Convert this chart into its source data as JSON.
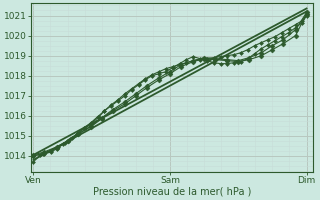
{
  "title": "",
  "xlabel": "Pression niveau de la mer( hPa )",
  "ylabel": "",
  "bg_color": "#cce8e0",
  "grid_color_major": "#b8c8c0",
  "grid_color_minor": "#c8dcd8",
  "line_color": "#2d5a2d",
  "marker_color": "#2d5a2d",
  "ylim": [
    1013.2,
    1021.6
  ],
  "yticks": [
    1014,
    1015,
    1016,
    1017,
    1018,
    1019,
    1020,
    1021
  ],
  "xtick_labels": [
    "Ven",
    "Sam",
    "Dim"
  ],
  "xtick_positions": [
    0.0,
    1.0,
    2.0
  ],
  "series": [
    {
      "x": [
        0.0,
        2.0
      ],
      "y": [
        1013.8,
        1021.2
      ],
      "marker": "none",
      "linewidth": 1.3,
      "markersize": 0
    },
    {
      "x": [
        0.0,
        2.0
      ],
      "y": [
        1014.05,
        1021.35
      ],
      "marker": "none",
      "linewidth": 1.3,
      "markersize": 0
    },
    {
      "x": [
        0.0,
        0.05,
        0.08,
        0.13,
        0.17,
        0.22,
        0.27,
        0.32,
        0.37,
        0.42,
        0.47,
        0.52,
        0.57,
        0.62,
        0.67,
        0.72,
        0.77,
        0.82,
        0.87,
        0.92,
        0.97,
        1.02,
        1.07,
        1.12,
        1.17,
        1.22,
        1.27,
        1.32,
        1.37,
        1.42,
        1.47,
        1.52,
        1.57,
        1.62,
        1.67,
        1.72,
        1.77,
        1.82,
        1.87,
        1.92,
        1.97,
        2.0
      ],
      "y": [
        1013.7,
        1014.05,
        1014.1,
        1014.2,
        1014.35,
        1014.6,
        1014.85,
        1015.1,
        1015.4,
        1015.65,
        1015.95,
        1016.25,
        1016.55,
        1016.8,
        1017.1,
        1017.35,
        1017.6,
        1017.85,
        1018.05,
        1018.2,
        1018.35,
        1018.45,
        1018.55,
        1018.65,
        1018.75,
        1018.8,
        1018.85,
        1018.9,
        1018.95,
        1019.0,
        1019.05,
        1019.15,
        1019.3,
        1019.5,
        1019.65,
        1019.8,
        1019.95,
        1020.15,
        1020.35,
        1020.55,
        1020.75,
        1021.05
      ],
      "marker": "D",
      "linewidth": 0.8,
      "markersize": 2.0
    },
    {
      "x": [
        0.0,
        0.07,
        0.13,
        0.18,
        0.23,
        0.28,
        0.33,
        0.38,
        0.43,
        0.48,
        0.52,
        0.57,
        0.62,
        0.67,
        0.72,
        0.77,
        0.82,
        0.87,
        0.92,
        0.97,
        1.02,
        1.07,
        1.12,
        1.17,
        1.22,
        1.27,
        1.32,
        1.37,
        1.42,
        1.47,
        1.52,
        1.57,
        1.62,
        1.67,
        1.72,
        1.77,
        1.82,
        1.87,
        1.92,
        1.97,
        2.0
      ],
      "y": [
        1014.0,
        1014.1,
        1014.25,
        1014.45,
        1014.65,
        1014.9,
        1015.15,
        1015.4,
        1015.65,
        1015.95,
        1016.25,
        1016.5,
        1016.75,
        1017.0,
        1017.3,
        1017.55,
        1017.8,
        1018.0,
        1018.1,
        1018.2,
        1018.4,
        1018.6,
        1018.8,
        1018.95,
        1018.85,
        1018.75,
        1018.65,
        1018.6,
        1018.6,
        1018.65,
        1018.7,
        1018.85,
        1019.1,
        1019.35,
        1019.55,
        1019.75,
        1019.95,
        1020.15,
        1020.4,
        1020.65,
        1021.0
      ],
      "marker": "D",
      "linewidth": 0.8,
      "markersize": 2.0
    },
    {
      "x": [
        0.0,
        0.08,
        0.17,
        0.25,
        0.33,
        0.42,
        0.5,
        0.58,
        0.67,
        0.75,
        0.83,
        0.92,
        1.0,
        1.08,
        1.17,
        1.25,
        1.33,
        1.42,
        1.5,
        1.58,
        1.67,
        1.75,
        1.83,
        1.92,
        2.0
      ],
      "y": [
        1014.05,
        1014.2,
        1014.45,
        1014.75,
        1015.1,
        1015.45,
        1015.85,
        1016.25,
        1016.6,
        1017.0,
        1017.4,
        1017.8,
        1018.1,
        1018.45,
        1018.7,
        1018.85,
        1018.8,
        1018.75,
        1018.7,
        1018.8,
        1019.0,
        1019.3,
        1019.6,
        1020.0,
        1021.1
      ],
      "marker": "D",
      "linewidth": 0.8,
      "markersize": 2.5
    },
    {
      "x": [
        0.0,
        0.08,
        0.17,
        0.25,
        0.33,
        0.42,
        0.5,
        0.58,
        0.67,
        0.75,
        0.83,
        0.92,
        1.0,
        1.08,
        1.17,
        1.25,
        1.33,
        1.42,
        1.5,
        1.58,
        1.67,
        1.75,
        1.83,
        1.92,
        2.0
      ],
      "y": [
        1014.0,
        1014.15,
        1014.4,
        1014.75,
        1015.1,
        1015.5,
        1015.9,
        1016.3,
        1016.7,
        1017.1,
        1017.5,
        1017.9,
        1018.2,
        1018.55,
        1018.75,
        1018.9,
        1018.85,
        1018.8,
        1018.75,
        1018.9,
        1019.15,
        1019.5,
        1019.8,
        1020.3,
        1021.15
      ],
      "marker": "D",
      "linewidth": 0.8,
      "markersize": 2.5
    }
  ]
}
